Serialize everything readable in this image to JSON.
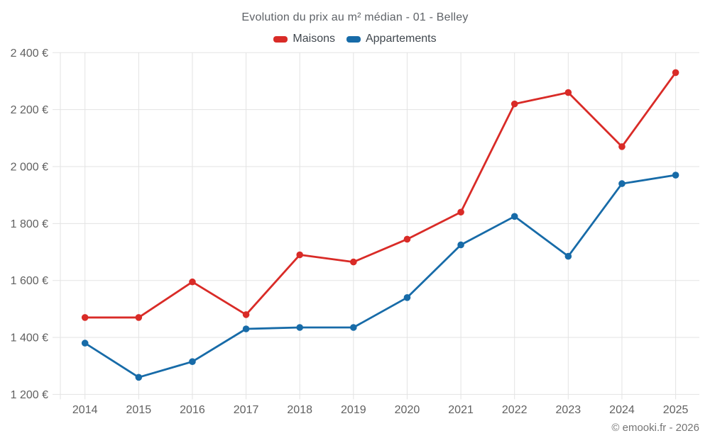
{
  "header": {
    "title": "Evolution du prix au m² médian - 01 - Belley"
  },
  "legend": {
    "items": [
      {
        "label": "Maisons",
        "color": "#d92b27"
      },
      {
        "label": "Appartements",
        "color": "#176ba8"
      }
    ]
  },
  "footer": {
    "copyright": "© emooki.fr - 2026"
  },
  "colors": {
    "maisons": "#d92b27",
    "appartements": "#176ba8",
    "gridline": "#e3e3e3",
    "tick_label": "#616161",
    "title_text": "#5f6368"
  },
  "chart_data": {
    "type": "line",
    "title": "Evolution du prix au m² médian - 01 - Belley",
    "xlabel": "",
    "ylabel": "",
    "x": [
      2014,
      2015,
      2016,
      2017,
      2018,
      2019,
      2020,
      2021,
      2022,
      2023,
      2024,
      2025
    ],
    "series": [
      {
        "name": "Maisons",
        "color": "#d92b27",
        "values": [
          1470,
          1470,
          1595,
          1480,
          1690,
          1665,
          1745,
          1840,
          2220,
          2260,
          2070,
          2330
        ]
      },
      {
        "name": "Appartements",
        "color": "#176ba8",
        "values": [
          1380,
          1260,
          1315,
          1430,
          1435,
          1435,
          1540,
          1725,
          1825,
          1685,
          1940,
          1970
        ]
      }
    ],
    "ylim": [
      1200,
      2400
    ],
    "ytick_step": 200,
    "ytick_suffix": " €",
    "grid": true,
    "legend_position": "top"
  }
}
